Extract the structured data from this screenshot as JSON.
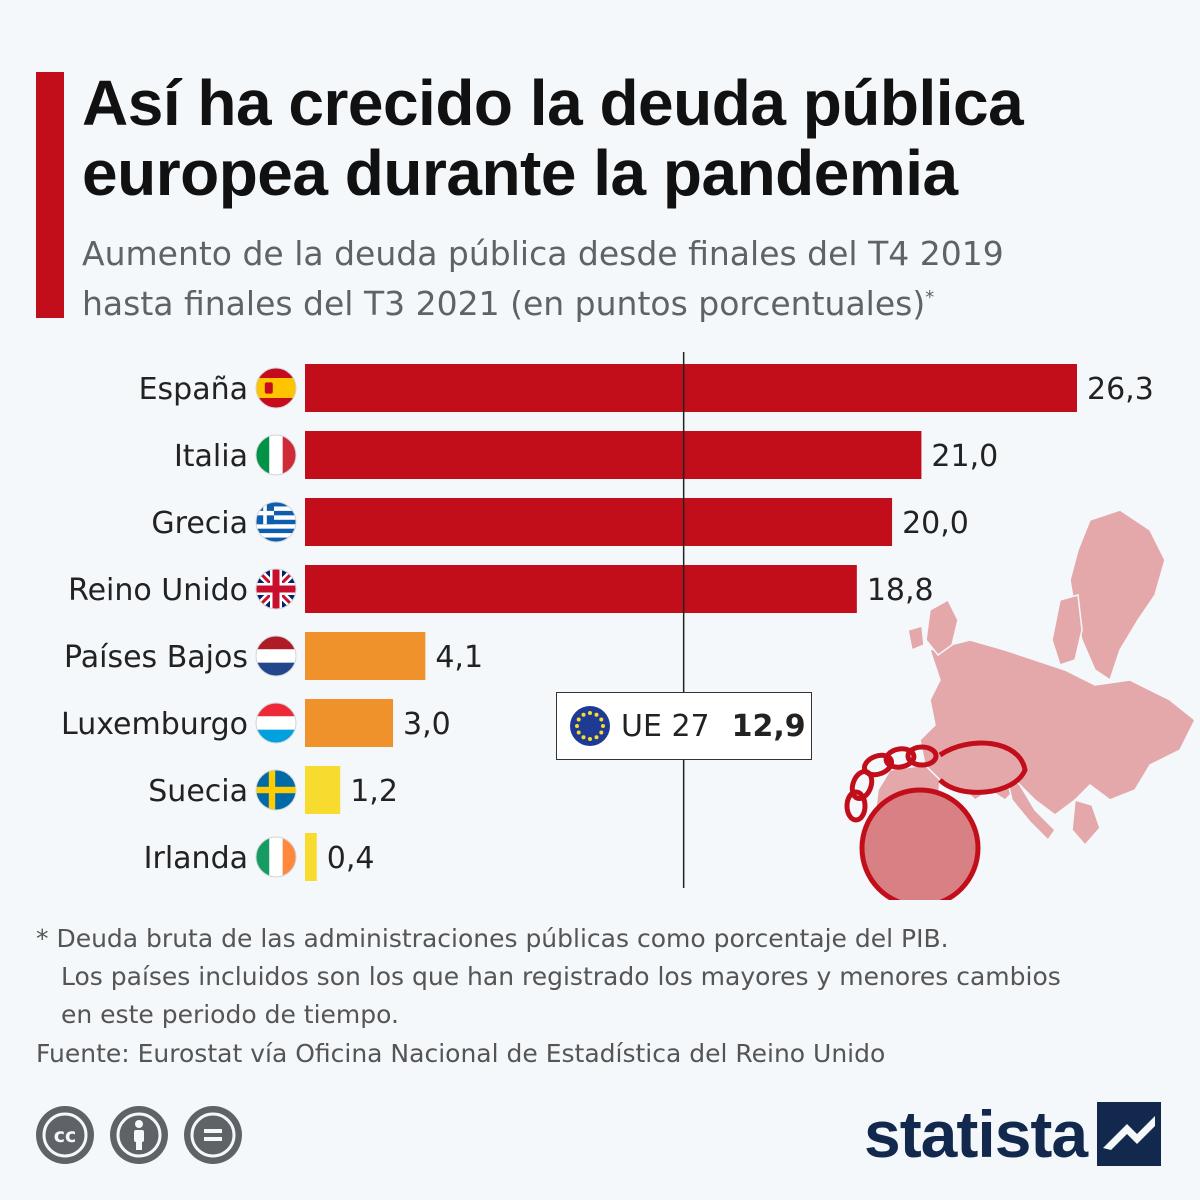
{
  "title_lines": [
    "Así ha crecido la deuda pública",
    "europea durante la pandemia"
  ],
  "subtitle_lines": [
    "Aumento de la deuda pública desde finales del T4 2019",
    "hasta finales del T3 2021 (en puntos porcentuales)"
  ],
  "subtitle_marker": "*",
  "colors": {
    "accent": "#c20e1a",
    "high": "#c20e1a",
    "mid": "#f0922c",
    "low": "#f7dc2f",
    "brand": "#12284c"
  },
  "chart_data": {
    "type": "bar",
    "orientation": "horizontal",
    "categories": [
      "España",
      "Italia",
      "Grecia",
      "Reino Unido",
      "Países Bajos",
      "Luxemburgo",
      "Suecia",
      "Irlanda"
    ],
    "values": [
      26.3,
      21.0,
      20.0,
      18.8,
      4.1,
      3.0,
      1.2,
      0.4
    ],
    "value_labels": [
      "26,3",
      "21,0",
      "20,0",
      "18,8",
      "4,1",
      "3,0",
      "1,2",
      "0,4"
    ],
    "flags": [
      "spain-flag",
      "italy-flag",
      "greece-flag",
      "uk-flag",
      "netherlands-flag",
      "luxembourg-flag",
      "sweden-flag",
      "ireland-flag"
    ],
    "bar_colors": [
      "#c20e1a",
      "#c20e1a",
      "#c20e1a",
      "#c20e1a",
      "#f0922c",
      "#f0922c",
      "#f7dc2f",
      "#f7dc2f"
    ],
    "reference": {
      "label": "UE 27",
      "value": 12.9,
      "value_label": "12,9"
    },
    "xlim": [
      0,
      26.3
    ],
    "grid": false
  },
  "footnote_lines": [
    "* Deuda bruta de las administraciones públicas como porcentaje del PIB.",
    "Los países incluidos son los que han registrado los mayores y menores cambios",
    "en este periodo de tiempo."
  ],
  "source": "Fuente: Eurostat vía Oficina Nacional de Estadística del Reino Unido",
  "license_icons": [
    "creative-commons-icon",
    "attribution-icon",
    "no-derivatives-icon"
  ],
  "license_glyphs": [
    "cc",
    "="
  ],
  "brand": "statista"
}
